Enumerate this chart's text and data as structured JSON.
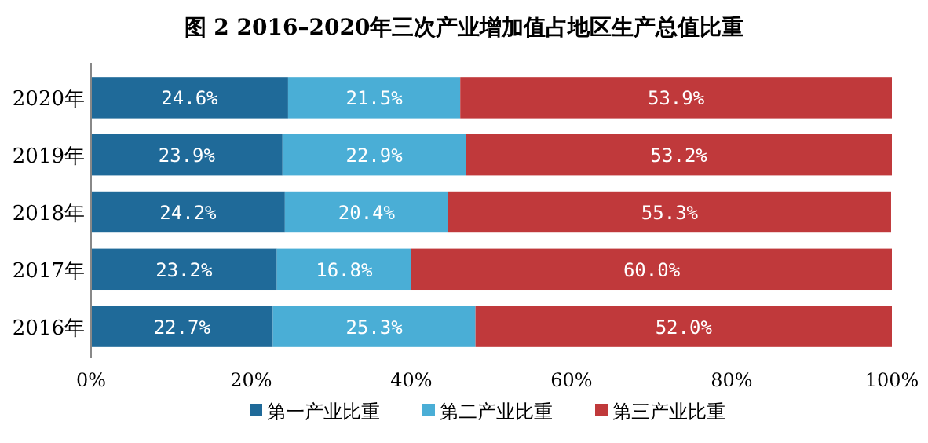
{
  "chart_data": {
    "type": "bar",
    "orientation": "horizontal",
    "stacked": true,
    "title": "图 2   2016–2020年三次产业增加值占地区生产总值比重",
    "categories": [
      "2020年",
      "2019年",
      "2018年",
      "2017年",
      "2016年"
    ],
    "series": [
      {
        "name": "第一产业比重",
        "color": "#1f6a99",
        "values": [
          24.6,
          23.9,
          24.2,
          23.2,
          22.7
        ],
        "value_labels": [
          "24.6%",
          "23.9%",
          "24.2%",
          "23.2%",
          "22.7%"
        ]
      },
      {
        "name": "第二产业比重",
        "color": "#4aaed6",
        "values": [
          21.5,
          22.9,
          20.4,
          16.8,
          25.3
        ],
        "value_labels": [
          "21.5%",
          "22.9%",
          "20.4%",
          "16.8%",
          "25.3%"
        ]
      },
      {
        "name": "第三产业比重",
        "color": "#c0393b",
        "values": [
          53.9,
          53.2,
          55.3,
          60.0,
          52.0
        ],
        "value_labels": [
          "53.9%",
          "53.2%",
          "55.3%",
          "60.0%",
          "52.0%"
        ]
      }
    ],
    "xlim": [
      0,
      100
    ],
    "xticks": [
      {
        "value": 0,
        "label": "0%"
      },
      {
        "value": 20,
        "label": "20%"
      },
      {
        "value": 40,
        "label": "40%"
      },
      {
        "value": 60,
        "label": "60%"
      },
      {
        "value": 80,
        "label": "80%"
      },
      {
        "value": 100,
        "label": "100%"
      }
    ],
    "legend": "bottom"
  }
}
